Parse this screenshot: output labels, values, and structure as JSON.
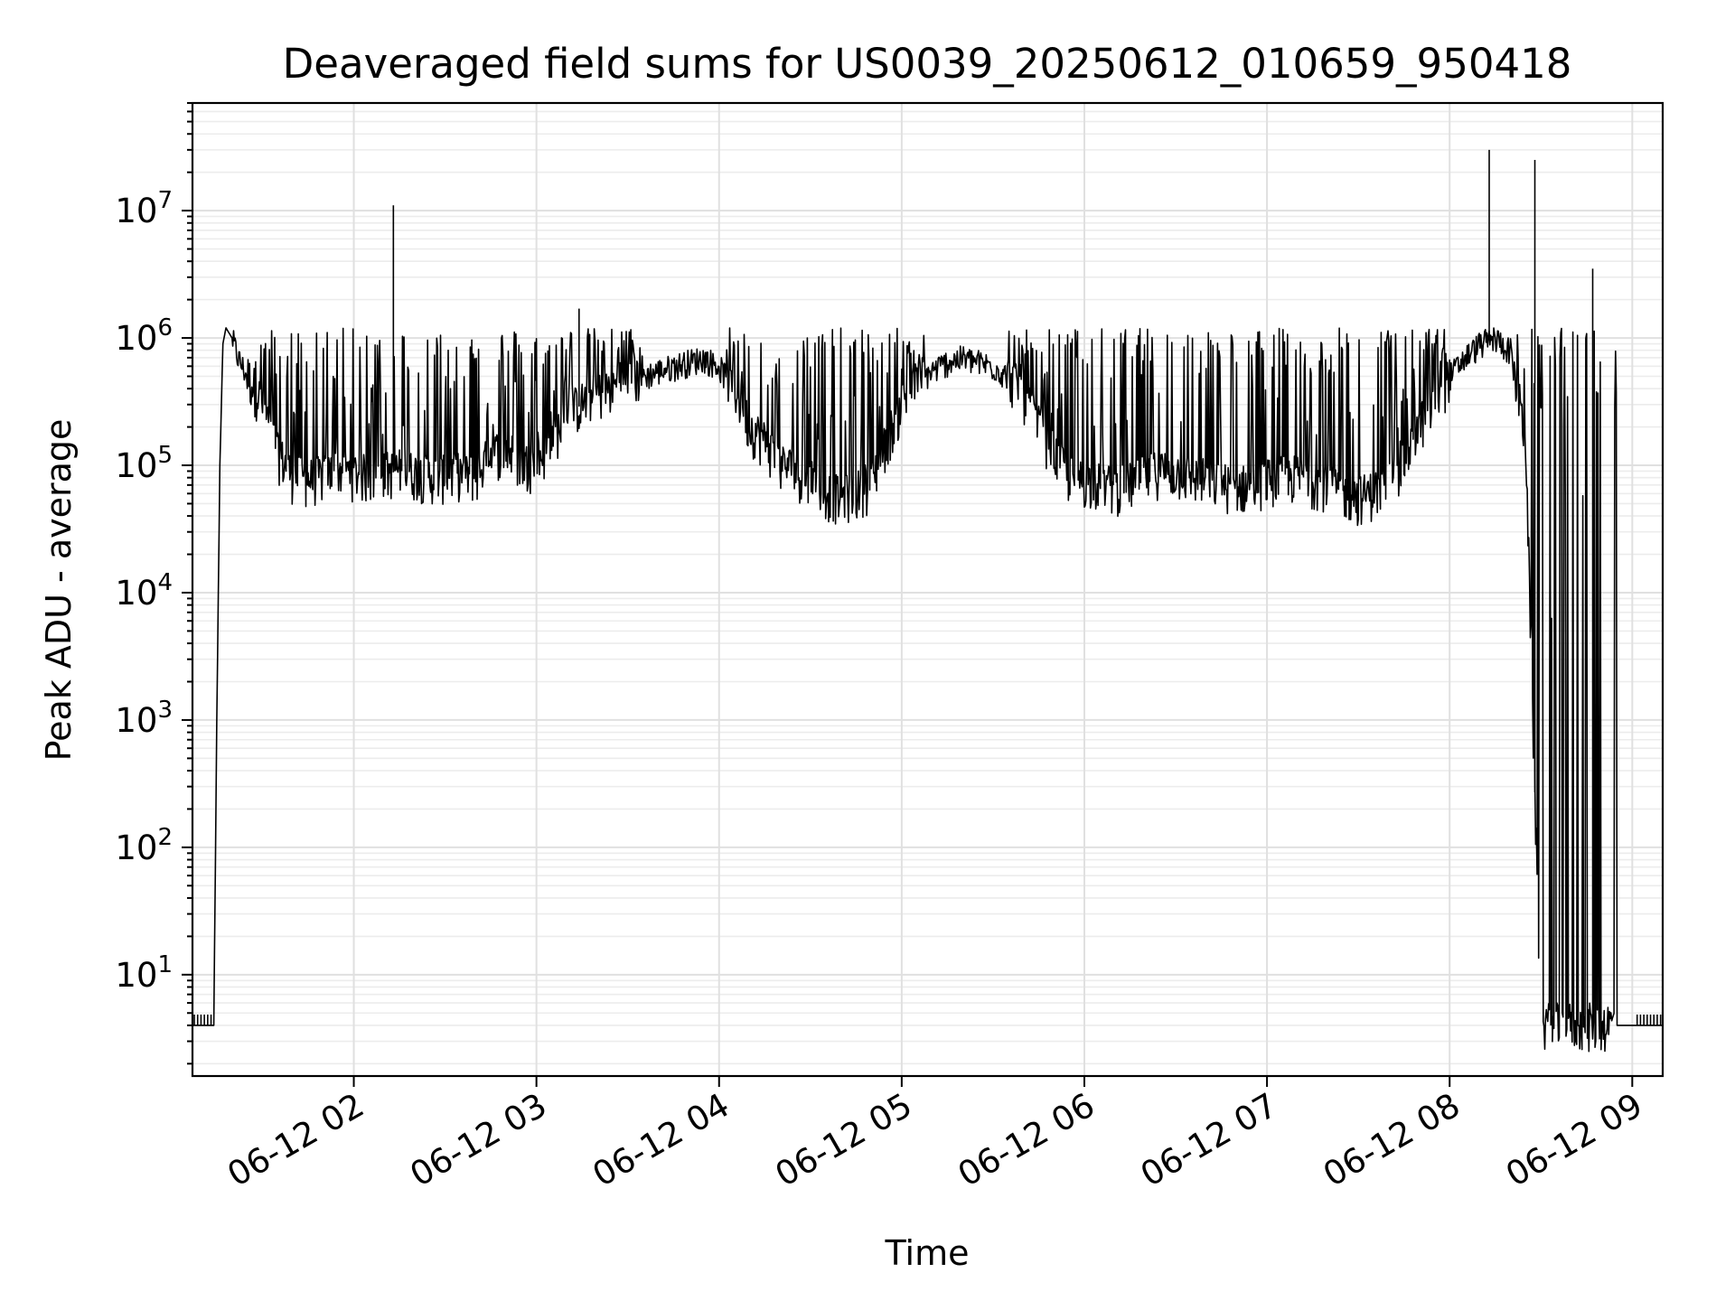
{
  "chart_data": {
    "type": "line",
    "title": "Deaveraged field sums for US0039_20250612_010659_950418",
    "xlabel": "Time",
    "ylabel": "Peak ADU - average",
    "yscale": "log",
    "grid": true,
    "xlim": [
      "06-12 01:07",
      "06-12 09:10"
    ],
    "ylim": [
      1.6,
      70000000
    ],
    "x_tick_labels": [
      "06-12 02",
      "06-12 03",
      "06-12 04",
      "06-12 05",
      "06-12 06",
      "06-12 07",
      "06-12 08",
      "06-12 09"
    ],
    "y_tick_labels": [
      {
        "base": "10",
        "exp": "1"
      },
      {
        "base": "10",
        "exp": "2"
      },
      {
        "base": "10",
        "exp": "3"
      },
      {
        "base": "10",
        "exp": "4"
      },
      {
        "base": "10",
        "exp": "5"
      },
      {
        "base": "10",
        "exp": "6"
      },
      {
        "base": "10",
        "exp": "7"
      }
    ],
    "series": [
      {
        "color": "#000000",
        "x": [
          "06-12 01:07",
          "06-12 01:14",
          "06-12 01:15",
          "06-12 01:16",
          "06-12 01:17",
          "06-12 01:18",
          "06-12 01:20",
          "06-12 01:22",
          "06-12 01:25",
          "06-12 01:30",
          "06-12 01:35",
          "06-12 01:40",
          "06-12 01:45",
          "06-12 01:50",
          "06-12 01:55",
          "06-12 02:00",
          "06-12 02:05",
          "06-12 02:10",
          "06-12 02:15",
          "06-12 02:20",
          "06-12 02:25",
          "06-12 02:30",
          "06-12 02:35",
          "06-12 02:40",
          "06-12 02:45",
          "06-12 02:50",
          "06-12 02:55",
          "06-12 03:00",
          "06-12 03:05",
          "06-12 03:10",
          "06-12 03:15",
          "06-12 03:20",
          "06-12 03:25",
          "06-12 03:30",
          "06-12 03:35",
          "06-12 03:40",
          "06-12 03:45",
          "06-12 03:50",
          "06-12 03:55",
          "06-12 04:00",
          "06-12 04:05",
          "06-12 04:10",
          "06-12 04:15",
          "06-12 04:20",
          "06-12 04:25",
          "06-12 04:30",
          "06-12 04:35",
          "06-12 04:40",
          "06-12 04:45",
          "06-12 04:50",
          "06-12 04:55",
          "06-12 05:00",
          "06-12 05:05",
          "06-12 05:10",
          "06-12 05:15",
          "06-12 05:20",
          "06-12 05:25",
          "06-12 05:30",
          "06-12 05:35",
          "06-12 05:40",
          "06-12 05:45",
          "06-12 05:50",
          "06-12 05:55",
          "06-12 06:00",
          "06-12 06:05",
          "06-12 06:10",
          "06-12 06:15",
          "06-12 06:20",
          "06-12 06:25",
          "06-12 06:30",
          "06-12 06:35",
          "06-12 06:40",
          "06-12 06:45",
          "06-12 06:50",
          "06-12 06:55",
          "06-12 07:00",
          "06-12 07:05",
          "06-12 07:10",
          "06-12 07:15",
          "06-12 07:20",
          "06-12 07:25",
          "06-12 07:30",
          "06-12 07:35",
          "06-12 07:40",
          "06-12 07:45",
          "06-12 07:50",
          "06-12 07:55",
          "06-12 08:00",
          "06-12 08:05",
          "06-12 08:10",
          "06-12 08:15",
          "06-12 08:20",
          "06-12 08:25",
          "06-12 08:30",
          "06-12 08:35",
          "06-12 08:40",
          "06-12 08:45",
          "06-12 08:50",
          "06-12 08:55",
          "06-12 08:58",
          "06-12 09:00",
          "06-12 09:01",
          "06-12 09:10"
        ],
        "y": [
          4,
          4,
          1000,
          100000,
          900000,
          1200000,
          1000000,
          700000,
          500000,
          300000,
          120000,
          80000,
          75000,
          80000,
          90000,
          85000,
          80000,
          85000,
          90000,
          85000,
          80000,
          80000,
          85000,
          80000,
          120000,
          130000,
          100000,
          100000,
          150000,
          250000,
          300000,
          350000,
          400000,
          450000,
          500000,
          550000,
          600000,
          650000,
          700000,
          600000,
          400000,
          200000,
          150000,
          100000,
          90000,
          70000,
          60000,
          55000,
          60000,
          70000,
          150000,
          300000,
          450000,
          550000,
          650000,
          700000,
          650000,
          600000,
          500000,
          350000,
          200000,
          120000,
          80000,
          75000,
          70000,
          65000,
          70000,
          80000,
          90000,
          85000,
          80000,
          75000,
          70000,
          65000,
          70000,
          75000,
          80000,
          80000,
          75000,
          70000,
          60000,
          55000,
          60000,
          70000,
          100000,
          200000,
          300000,
          500000,
          700000,
          900000,
          1000000,
          800000,
          150000,
          4,
          4,
          4,
          4,
          4,
          4,
          4,
          4,
          4,
          4
        ],
        "spikes": [
          {
            "x": "06-12 02:13",
            "y": 11000000
          },
          {
            "x": "06-12 03:14",
            "y": 1700000
          },
          {
            "x": "06-12 08:13",
            "y": 30000000
          },
          {
            "x": "06-12 08:28",
            "y": 25000000
          },
          {
            "x": "06-12 08:47",
            "y": 3500000
          }
        ]
      }
    ]
  }
}
